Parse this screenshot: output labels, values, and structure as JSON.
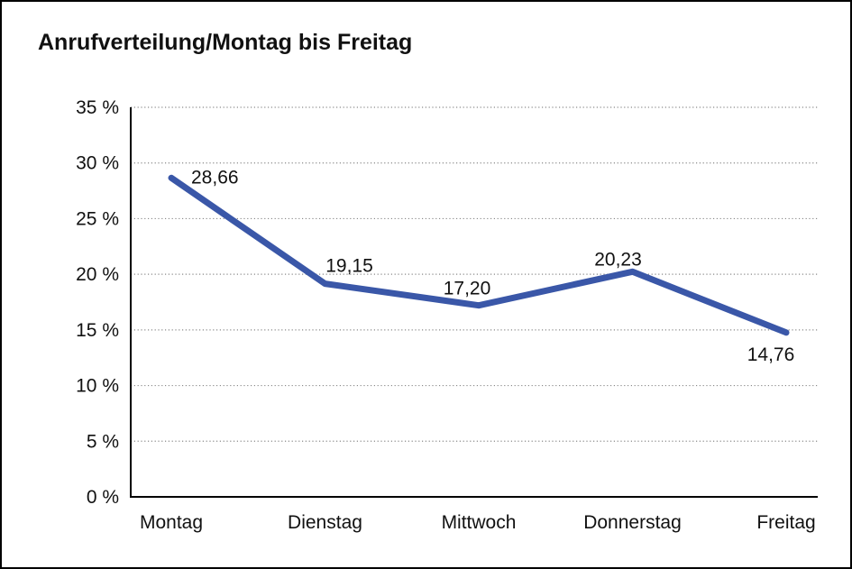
{
  "title": "Anrufverteilung/Montag bis Freitag",
  "chart_data": {
    "type": "line",
    "title": "Anrufverteilung/Montag bis Freitag",
    "categories": [
      "Montag",
      "Dienstag",
      "Mittwoch",
      "Donnerstag",
      "Freitag"
    ],
    "series": [
      {
        "name": "Anrufverteilung",
        "values": [
          28.66,
          19.15,
          17.2,
          20.23,
          14.76
        ]
      }
    ],
    "value_labels": [
      "28,66",
      "19,15",
      "17,20",
      "20,23",
      "14,76"
    ],
    "xlabel": "",
    "ylabel": "",
    "ylim": [
      0,
      35
    ],
    "ytick_step": 5,
    "ytick_labels": [
      "0 %",
      "5 %",
      "10 %",
      "15 %",
      "20 %",
      "25 %",
      "30 %",
      "35 %"
    ],
    "grid": "horizontal-dotted",
    "legend_position": "none",
    "colors": {
      "line": "#3A57A8",
      "text": "#111111",
      "grid": "#8a8a8a",
      "axis": "#000000",
      "background": "#ffffff"
    }
  }
}
